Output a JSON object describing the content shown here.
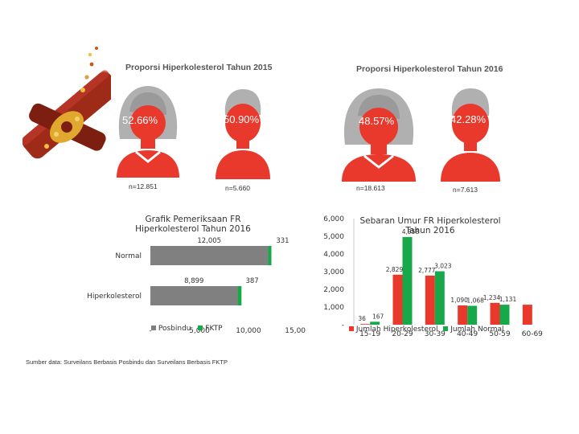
{
  "proportions": {
    "title_2015": "Proporsi Hiperkolesterol Tahun 2015",
    "title_2016": "Proporsi Hiperkolesterol Tahun 2016",
    "female_2015": {
      "percent": "52.66%",
      "n": "n=12.851"
    },
    "male_2015": {
      "percent": "50.90%",
      "n": "n=5.660"
    },
    "female_2016": {
      "percent": "48.57%",
      "n": "n=18.613"
    },
    "male_2016": {
      "percent": "42.28%",
      "n": "n=7.613"
    }
  },
  "colors": {
    "red": "#e8392c",
    "gray": "#b0b0b0",
    "green": "#17a84a",
    "vessel": "#9e2a18",
    "bar_gray": "#808080"
  },
  "footer": "Sumber data: Surveilans Berbasis Posbindu dan Surveilans Berbasis FKTP",
  "chart_data": [
    {
      "type": "bar",
      "orientation": "horizontal",
      "stacked": true,
      "title": "Grafik Pemeriksaan FR Hiperkolesterol Tahun 2016",
      "categories": [
        "Normal",
        "Hiperkolesterol"
      ],
      "series": [
        {
          "name": "Posbindu",
          "values": [
            12005,
            8899
          ],
          "labels": [
            "12,005",
            "8,899"
          ]
        },
        {
          "name": "FKTP",
          "values": [
            331,
            387
          ],
          "labels": [
            "331",
            "387"
          ]
        }
      ],
      "xlim": [
        0,
        15000
      ],
      "xticks": [
        "-",
        "5,000",
        "10,000",
        "15,000"
      ],
      "legend": "bottom"
    },
    {
      "type": "bar",
      "title": "Sebaran Umur FR Hiperkolesterol Tahun 2016",
      "categories": [
        "15-19",
        "20-29",
        "30-39",
        "40-49",
        "50-59",
        "60-69"
      ],
      "series": [
        {
          "name": "Jumlah Hiperkolesterol",
          "values": [
            36,
            2829,
            2777,
            1090,
            1234,
            1131
          ],
          "labels": [
            "36",
            "2,829",
            "2,777",
            "1,090",
            "1,234",
            ""
          ]
        },
        {
          "name": "Jumlah Normal",
          "values": [
            167,
            4958,
            3023,
            1068,
            1131,
            0
          ],
          "labels": [
            "167",
            "4,958",
            "3,023",
            "1,068",
            "1,131",
            ""
          ]
        }
      ],
      "ylim": [
        0,
        6000
      ],
      "yticks": [
        "-",
        "1,000",
        "2,000",
        "3,000",
        "4,000",
        "5,000",
        "6,000"
      ],
      "xtick_labels": [
        "15-19",
        "20-29",
        "30-39",
        "40-49",
        "50-59",
        "60-69"
      ],
      "legend": "bottom"
    }
  ]
}
